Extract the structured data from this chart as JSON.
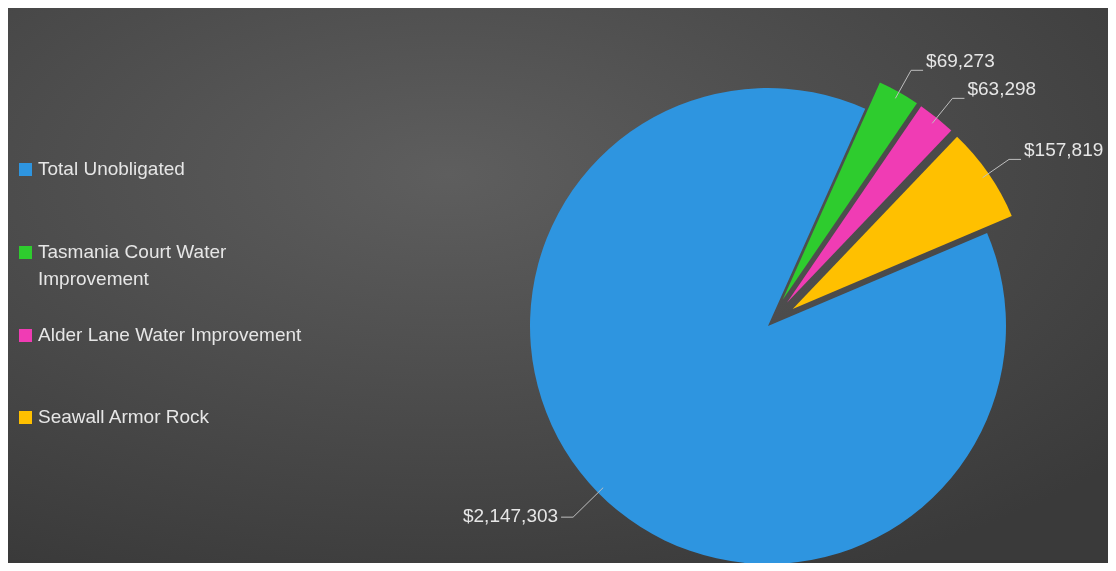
{
  "chart_data": {
    "type": "pie",
    "categories": [
      "Total Unobligated",
      "Tasmania Court Water Improvement",
      "Alder Lane Water Improvement",
      "Seawall Armor Rock"
    ],
    "values": [
      2147303,
      69273,
      63298,
      157819
    ],
    "colors": [
      "#2e95e0",
      "#2ecc2e",
      "#f03cb4",
      "#ffc000"
    ],
    "value_labels": [
      "$2,147,303",
      "$69,273",
      "$63,298",
      "$157,819"
    ],
    "legend": "left"
  }
}
